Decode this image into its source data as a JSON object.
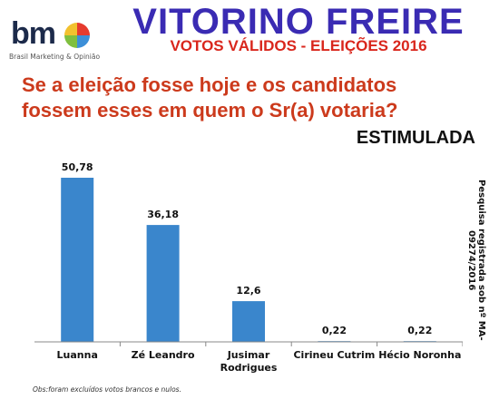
{
  "logo": {
    "text": "bm",
    "tagline": "Brasil Marketing & Opinião",
    "colors": [
      "#e63b2e",
      "#3c8fd8",
      "#7fbf3f",
      "#f2c12e"
    ]
  },
  "header": {
    "title": "VITORINO FREIRE",
    "subtitle": "VOTOS VÁLIDOS - ELEIÇÕES 2016"
  },
  "question": {
    "line1": "Se a eleição fosse hoje e os candidatos",
    "line2": "fossem esses em quem o Sr(a) votaria?"
  },
  "tag": "ESTIMULADA",
  "registration": "Pesquisa registrada sob nº MA-09274/2016",
  "footnote": "Obs:foram excluídos votos brancos e nulos.",
  "chart_data": {
    "type": "bar",
    "categories": [
      "Luanna",
      "Zé Leandro",
      "Jusimar Rodrigues",
      "Cirineu Cutrim",
      "Hécio Noronha"
    ],
    "category_lines": [
      [
        "Luanna"
      ],
      [
        "Zé Leandro"
      ],
      [
        "Jusimar",
        "Rodrigues"
      ],
      [
        "Cirineu Cutrim"
      ],
      [
        "Hécio Noronha"
      ]
    ],
    "values": [
      50.78,
      36.18,
      12.6,
      0.22,
      0.22
    ],
    "value_labels": [
      "50,78",
      "36,18",
      "12,6",
      "0,22",
      "0,22"
    ],
    "ylim": [
      0,
      55
    ],
    "bar_color": "#3a86cc",
    "grid": false,
    "legend": "none"
  }
}
